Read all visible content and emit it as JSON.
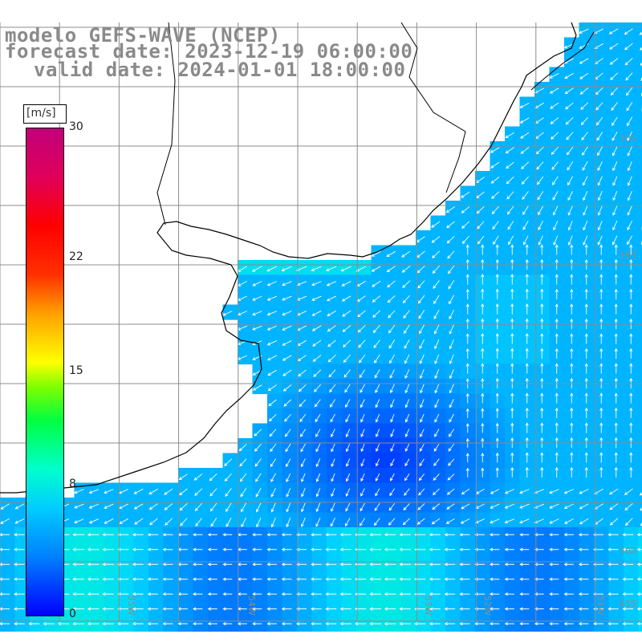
{
  "title": {
    "line1": "modelo GEFS-WAVE (NCEP)",
    "line2": "forecast date: 2023-12-19 06:00:00",
    "line3": "valid date: 2024-01-01 18:00:00"
  },
  "colorbar": {
    "unit": "[m/s]",
    "ticks": [
      "30",
      "22",
      "15",
      "8",
      "0"
    ],
    "tick_values": [
      30,
      22,
      15,
      8,
      0
    ],
    "range": [
      0,
      30
    ]
  },
  "colors": {
    "land": "#ffffff",
    "coast": "#000000",
    "grid": "#8c8c8c",
    "arrow": "#ffffff",
    "low_speed": "#0000ff",
    "mid_speed": "#00ccff",
    "high_speed": "#00ff80"
  },
  "map": {
    "lat_labels": [
      "30S",
      "35S",
      "40S",
      "41S"
    ],
    "lon_labels": [
      "55W",
      "54W",
      "53W",
      "52W",
      "51W"
    ]
  }
}
